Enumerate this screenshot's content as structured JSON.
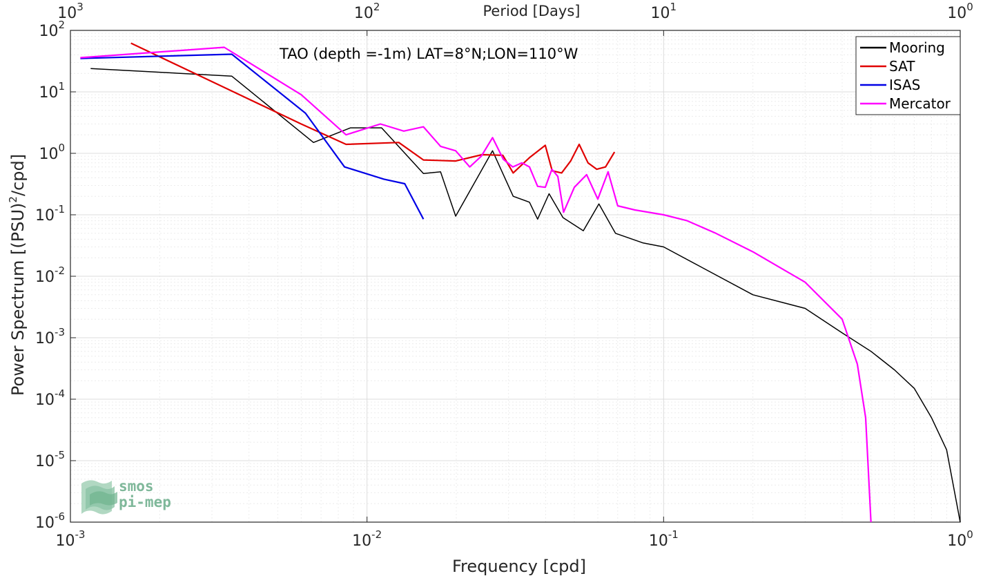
{
  "chart_data": {
    "type": "line",
    "title": "TAO (depth =-1m) LAT=8°N;LON=110°W",
    "xlabel": "Frequency [cpd]",
    "ylabel_main": "Power Spectrum [(PSU)",
    "ylabel_sup": "2",
    "ylabel_tail": "/cpd]",
    "top_xlabel": "Period [Days]",
    "x_scale": "log",
    "y_scale": "log",
    "xlim": [
      0.001,
      1
    ],
    "ylim": [
      1e-06,
      100
    ],
    "x_ticks": [
      {
        "base": "10",
        "exp": "-3"
      },
      {
        "base": "10",
        "exp": "-2"
      },
      {
        "base": "10",
        "exp": "-1"
      },
      {
        "base": "10",
        "exp": "0"
      }
    ],
    "y_ticks": [
      {
        "base": "10",
        "exp": "-6"
      },
      {
        "base": "10",
        "exp": "-5"
      },
      {
        "base": "10",
        "exp": "-4"
      },
      {
        "base": "10",
        "exp": "-3"
      },
      {
        "base": "10",
        "exp": "-2"
      },
      {
        "base": "10",
        "exp": "-1"
      },
      {
        "base": "10",
        "exp": "0"
      },
      {
        "base": "10",
        "exp": "1"
      },
      {
        "base": "10",
        "exp": "2"
      }
    ],
    "top_ticks": [
      {
        "base": "10",
        "exp": "3"
      },
      {
        "base": "10",
        "exp": "2"
      },
      {
        "base": "10",
        "exp": "1"
      },
      {
        "base": "10",
        "exp": "0"
      }
    ],
    "grid": true,
    "legend_position": "top-right",
    "series": [
      {
        "name": "Mooring",
        "color": "#000000",
        "x": [
          0.00117,
          0.0035,
          0.0066,
          0.0088,
          0.0112,
          0.0155,
          0.0177,
          0.0199,
          0.0265,
          0.0311,
          0.0353,
          0.0376,
          0.0411,
          0.0458,
          0.0536,
          0.0605,
          0.0688,
          0.085,
          0.1,
          0.2,
          0.3,
          0.4,
          0.5,
          0.6,
          0.7,
          0.8,
          0.9,
          1.0
        ],
        "y": [
          24,
          18,
          1.5,
          2.6,
          2.6,
          0.47,
          0.5,
          0.095,
          1.1,
          0.2,
          0.16,
          0.085,
          0.22,
          0.09,
          0.055,
          0.15,
          0.05,
          0.035,
          0.03,
          0.005,
          0.003,
          0.0012,
          0.0006,
          0.0003,
          0.00015,
          5e-05,
          1.5e-05,
          1e-06
        ]
      },
      {
        "name": "SAT",
        "color": "#e00000",
        "x": [
          0.0016,
          0.006,
          0.0085,
          0.0128,
          0.0155,
          0.0199,
          0.0244,
          0.0287,
          0.0311,
          0.0353,
          0.0399,
          0.0421,
          0.0453,
          0.0486,
          0.0519,
          0.0556,
          0.0595,
          0.0637,
          0.0683
        ],
        "y": [
          62,
          3,
          1.4,
          1.5,
          0.78,
          0.75,
          0.95,
          0.93,
          0.48,
          0.85,
          1.35,
          0.52,
          0.48,
          0.75,
          1.4,
          0.7,
          0.55,
          0.6,
          1.05
        ]
      },
      {
        "name": "ISAS",
        "color": "#0000e6",
        "x": [
          0.00108,
          0.0035,
          0.0062,
          0.0084,
          0.0114,
          0.0134,
          0.0155
        ],
        "y": [
          35,
          41,
          4.5,
          0.6,
          0.38,
          0.32,
          0.085
        ]
      },
      {
        "name": "Mercator",
        "color": "#ff00ff",
        "x": [
          0.00108,
          0.0033,
          0.006,
          0.0085,
          0.0111,
          0.0133,
          0.0155,
          0.0177,
          0.0199,
          0.0222,
          0.0243,
          0.0265,
          0.0288,
          0.031,
          0.0333,
          0.0353,
          0.0376,
          0.0399,
          0.042,
          0.044,
          0.046,
          0.05,
          0.055,
          0.06,
          0.065,
          0.07,
          0.08,
          0.1,
          0.12,
          0.15,
          0.2,
          0.3,
          0.4,
          0.45,
          0.48,
          0.5
        ],
        "y": [
          36,
          53,
          9,
          2,
          3,
          2.3,
          2.7,
          1.3,
          1.1,
          0.6,
          0.9,
          1.8,
          0.8,
          0.6,
          0.7,
          0.6,
          0.29,
          0.28,
          0.55,
          0.42,
          0.11,
          0.28,
          0.45,
          0.18,
          0.5,
          0.14,
          0.12,
          0.1,
          0.08,
          0.05,
          0.025,
          0.008,
          0.002,
          0.00037,
          5e-05,
          1e-06
        ]
      }
    ]
  },
  "logo": {
    "line1": "smos",
    "line2": "pi-mep"
  }
}
